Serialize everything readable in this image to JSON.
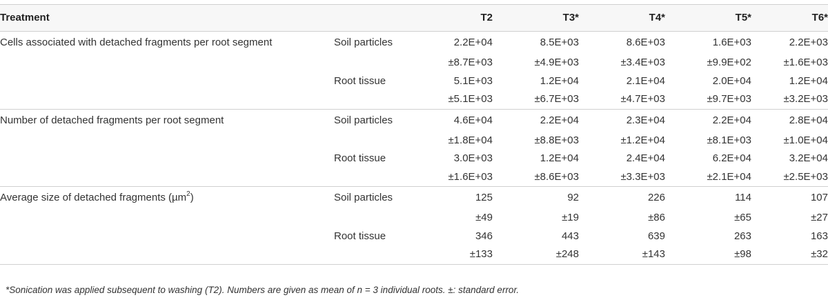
{
  "header": {
    "treatment": "Treatment",
    "columns": [
      "T2",
      "T3*",
      "T4*",
      "T5*",
      "T6*"
    ]
  },
  "groups": [
    {
      "metric": "Cells associated with detached fragments per root segment",
      "rows": [
        {
          "subcategory": "Soil particles",
          "means": [
            "2.2E+04",
            "8.5E+03",
            "8.6E+03",
            "1.6E+03",
            "2.2E+03"
          ],
          "errors": [
            "±8.7E+03",
            "±4.9E+03",
            "±3.4E+03",
            "±9.9E+02",
            "±1.6E+03"
          ]
        },
        {
          "subcategory": "Root tissue",
          "means": [
            "5.1E+03",
            "1.2E+04",
            "2.1E+04",
            "2.0E+04",
            "1.2E+04"
          ],
          "errors": [
            "±5.1E+03",
            "±6.7E+03",
            "±4.7E+03",
            "±9.7E+03",
            "±3.2E+03"
          ]
        }
      ]
    },
    {
      "metric": "Number of detached fragments per root segment",
      "rows": [
        {
          "subcategory": "Soil particles",
          "means": [
            "4.6E+04",
            "2.2E+04",
            "2.3E+04",
            "2.2E+04",
            "2.8E+04"
          ],
          "errors": [
            "±1.8E+04",
            "±8.8E+03",
            "±1.2E+04",
            "±8.1E+03",
            "±1.0E+04"
          ]
        },
        {
          "subcategory": "Root tissue",
          "means": [
            "3.0E+03",
            "1.2E+04",
            "2.4E+04",
            "6.2E+04",
            "3.2E+04"
          ],
          "errors": [
            "±1.6E+03",
            "±8.6E+03",
            "±3.3E+03",
            "±2.1E+04",
            "±2.5E+03"
          ]
        }
      ]
    },
    {
      "metric": "Average size of detached fragments (µm",
      "metric_sup": "2",
      "metric_tail": ")",
      "rows": [
        {
          "subcategory": "Soil particles",
          "means": [
            "125",
            "92",
            "226",
            "114",
            "107"
          ],
          "errors": [
            "±49",
            "±19",
            "±86",
            "±65",
            "±27"
          ]
        },
        {
          "subcategory": "Root tissue",
          "means": [
            "346",
            "443",
            "639",
            "263",
            "163"
          ],
          "errors": [
            "±133",
            "±248",
            "±143",
            "±98",
            "±32"
          ]
        }
      ]
    }
  ],
  "footnote": "*Sonication was applied subsequent to washing (T2). Numbers are given as mean of n = 3 individual roots. ±: standard error."
}
